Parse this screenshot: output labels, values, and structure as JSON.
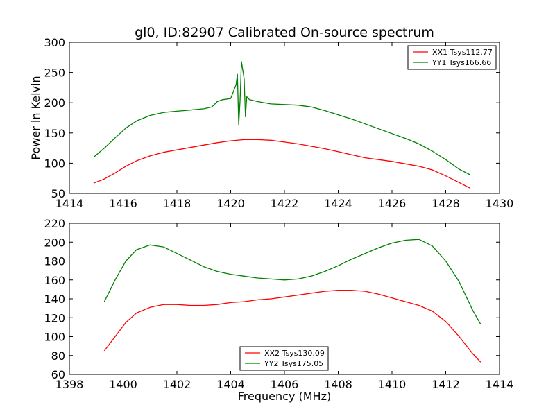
{
  "title": "gl0, ID:82907 Calibrated On-source spectrum",
  "chart_data": [
    {
      "type": "line",
      "xlabel": "",
      "ylabel": "Power in Kelvin",
      "xlim": [
        1414,
        1430
      ],
      "ylim": [
        50,
        300
      ],
      "xticks": [
        1414,
        1416,
        1418,
        1420,
        1422,
        1424,
        1426,
        1428,
        1430
      ],
      "yticks": [
        50,
        100,
        150,
        200,
        250,
        300
      ],
      "legend_position": "top-right",
      "series": [
        {
          "name": "XX1 Tsys112.77",
          "color": "#ff0000",
          "points": [
            [
              1414.9,
              67
            ],
            [
              1415.3,
              74
            ],
            [
              1415.7,
              84
            ],
            [
              1416.1,
              95
            ],
            [
              1416.5,
              104
            ],
            [
              1417.0,
              112
            ],
            [
              1417.5,
              118
            ],
            [
              1418.0,
              122
            ],
            [
              1418.5,
              126
            ],
            [
              1419.0,
              130
            ],
            [
              1419.5,
              134
            ],
            [
              1420.0,
              137
            ],
            [
              1420.5,
              139
            ],
            [
              1421.0,
              139
            ],
            [
              1421.5,
              138
            ],
            [
              1422.0,
              135
            ],
            [
              1422.5,
              132
            ],
            [
              1423.0,
              128
            ],
            [
              1423.5,
              124
            ],
            [
              1424.0,
              119
            ],
            [
              1424.5,
              114
            ],
            [
              1425.0,
              109
            ],
            [
              1425.5,
              106
            ],
            [
              1426.0,
              103
            ],
            [
              1426.5,
              99
            ],
            [
              1427.0,
              95
            ],
            [
              1427.5,
              89
            ],
            [
              1428.0,
              79
            ],
            [
              1428.5,
              68
            ],
            [
              1428.9,
              59
            ]
          ]
        },
        {
          "name": "YY1 Tsys166.66",
          "color": "#008000",
          "points": [
            [
              1414.9,
              110
            ],
            [
              1415.3,
              125
            ],
            [
              1415.7,
              142
            ],
            [
              1416.1,
              158
            ],
            [
              1416.5,
              170
            ],
            [
              1417.0,
              179
            ],
            [
              1417.5,
              184
            ],
            [
              1418.0,
              186
            ],
            [
              1418.5,
              188
            ],
            [
              1419.0,
              190
            ],
            [
              1419.3,
              193
            ],
            [
              1419.5,
              202
            ],
            [
              1419.7,
              205
            ],
            [
              1420.0,
              207
            ],
            [
              1420.2,
              230
            ],
            [
              1420.25,
              247
            ],
            [
              1420.3,
              163
            ],
            [
              1420.35,
              205
            ],
            [
              1420.4,
              268
            ],
            [
              1420.5,
              240
            ],
            [
              1420.55,
              177
            ],
            [
              1420.6,
              210
            ],
            [
              1420.7,
              205
            ],
            [
              1421.0,
              202
            ],
            [
              1421.5,
              198
            ],
            [
              1422.0,
              197
            ],
            [
              1422.5,
              196
            ],
            [
              1423.0,
              193
            ],
            [
              1423.5,
              187
            ],
            [
              1424.0,
              180
            ],
            [
              1424.5,
              173
            ],
            [
              1425.0,
              165
            ],
            [
              1425.5,
              157
            ],
            [
              1426.0,
              149
            ],
            [
              1426.5,
              141
            ],
            [
              1427.0,
              132
            ],
            [
              1427.5,
              120
            ],
            [
              1428.0,
              106
            ],
            [
              1428.5,
              90
            ],
            [
              1428.9,
              81
            ]
          ]
        }
      ]
    },
    {
      "type": "line",
      "xlabel": "Frequency (MHz)",
      "ylabel": "",
      "xlim": [
        1398,
        1414
      ],
      "ylim": [
        60,
        220
      ],
      "xticks": [
        1398,
        1400,
        1402,
        1404,
        1406,
        1408,
        1410,
        1412,
        1414
      ],
      "yticks": [
        60,
        80,
        100,
        120,
        140,
        160,
        180,
        200,
        220
      ],
      "legend_position": "bottom-center",
      "series": [
        {
          "name": "XX2 Tsys130.09",
          "color": "#ff0000",
          "points": [
            [
              1399.3,
              85
            ],
            [
              1399.7,
              100
            ],
            [
              1400.1,
              115
            ],
            [
              1400.5,
              125
            ],
            [
              1401.0,
              131
            ],
            [
              1401.5,
              134
            ],
            [
              1402.0,
              134
            ],
            [
              1402.5,
              133
            ],
            [
              1403.0,
              133
            ],
            [
              1403.5,
              134
            ],
            [
              1404.0,
              136
            ],
            [
              1404.5,
              137
            ],
            [
              1405.0,
              139
            ],
            [
              1405.5,
              140
            ],
            [
              1406.0,
              142
            ],
            [
              1406.5,
              144
            ],
            [
              1407.0,
              146
            ],
            [
              1407.5,
              148
            ],
            [
              1408.0,
              149
            ],
            [
              1408.5,
              149
            ],
            [
              1409.0,
              148
            ],
            [
              1409.5,
              145
            ],
            [
              1410.0,
              141
            ],
            [
              1410.5,
              137
            ],
            [
              1411.0,
              133
            ],
            [
              1411.5,
              127
            ],
            [
              1412.0,
              116
            ],
            [
              1412.5,
              100
            ],
            [
              1413.0,
              82
            ],
            [
              1413.3,
              73
            ]
          ]
        },
        {
          "name": "YY2 Tsys175.05",
          "color": "#008000",
          "points": [
            [
              1399.3,
              137
            ],
            [
              1399.7,
              160
            ],
            [
              1400.1,
              180
            ],
            [
              1400.5,
              192
            ],
            [
              1401.0,
              197
            ],
            [
              1401.5,
              195
            ],
            [
              1402.0,
              188
            ],
            [
              1402.5,
              181
            ],
            [
              1403.0,
              174
            ],
            [
              1403.5,
              169
            ],
            [
              1404.0,
              166
            ],
            [
              1404.5,
              164
            ],
            [
              1405.0,
              162
            ],
            [
              1405.5,
              161
            ],
            [
              1406.0,
              160
            ],
            [
              1406.5,
              161
            ],
            [
              1407.0,
              164
            ],
            [
              1407.5,
              169
            ],
            [
              1408.0,
              175
            ],
            [
              1408.5,
              182
            ],
            [
              1409.0,
              188
            ],
            [
              1409.5,
              194
            ],
            [
              1410.0,
              199
            ],
            [
              1410.5,
              202
            ],
            [
              1411.0,
              203
            ],
            [
              1411.5,
              196
            ],
            [
              1412.0,
              180
            ],
            [
              1412.5,
              158
            ],
            [
              1413.0,
              128
            ],
            [
              1413.3,
              113
            ]
          ]
        }
      ]
    }
  ]
}
